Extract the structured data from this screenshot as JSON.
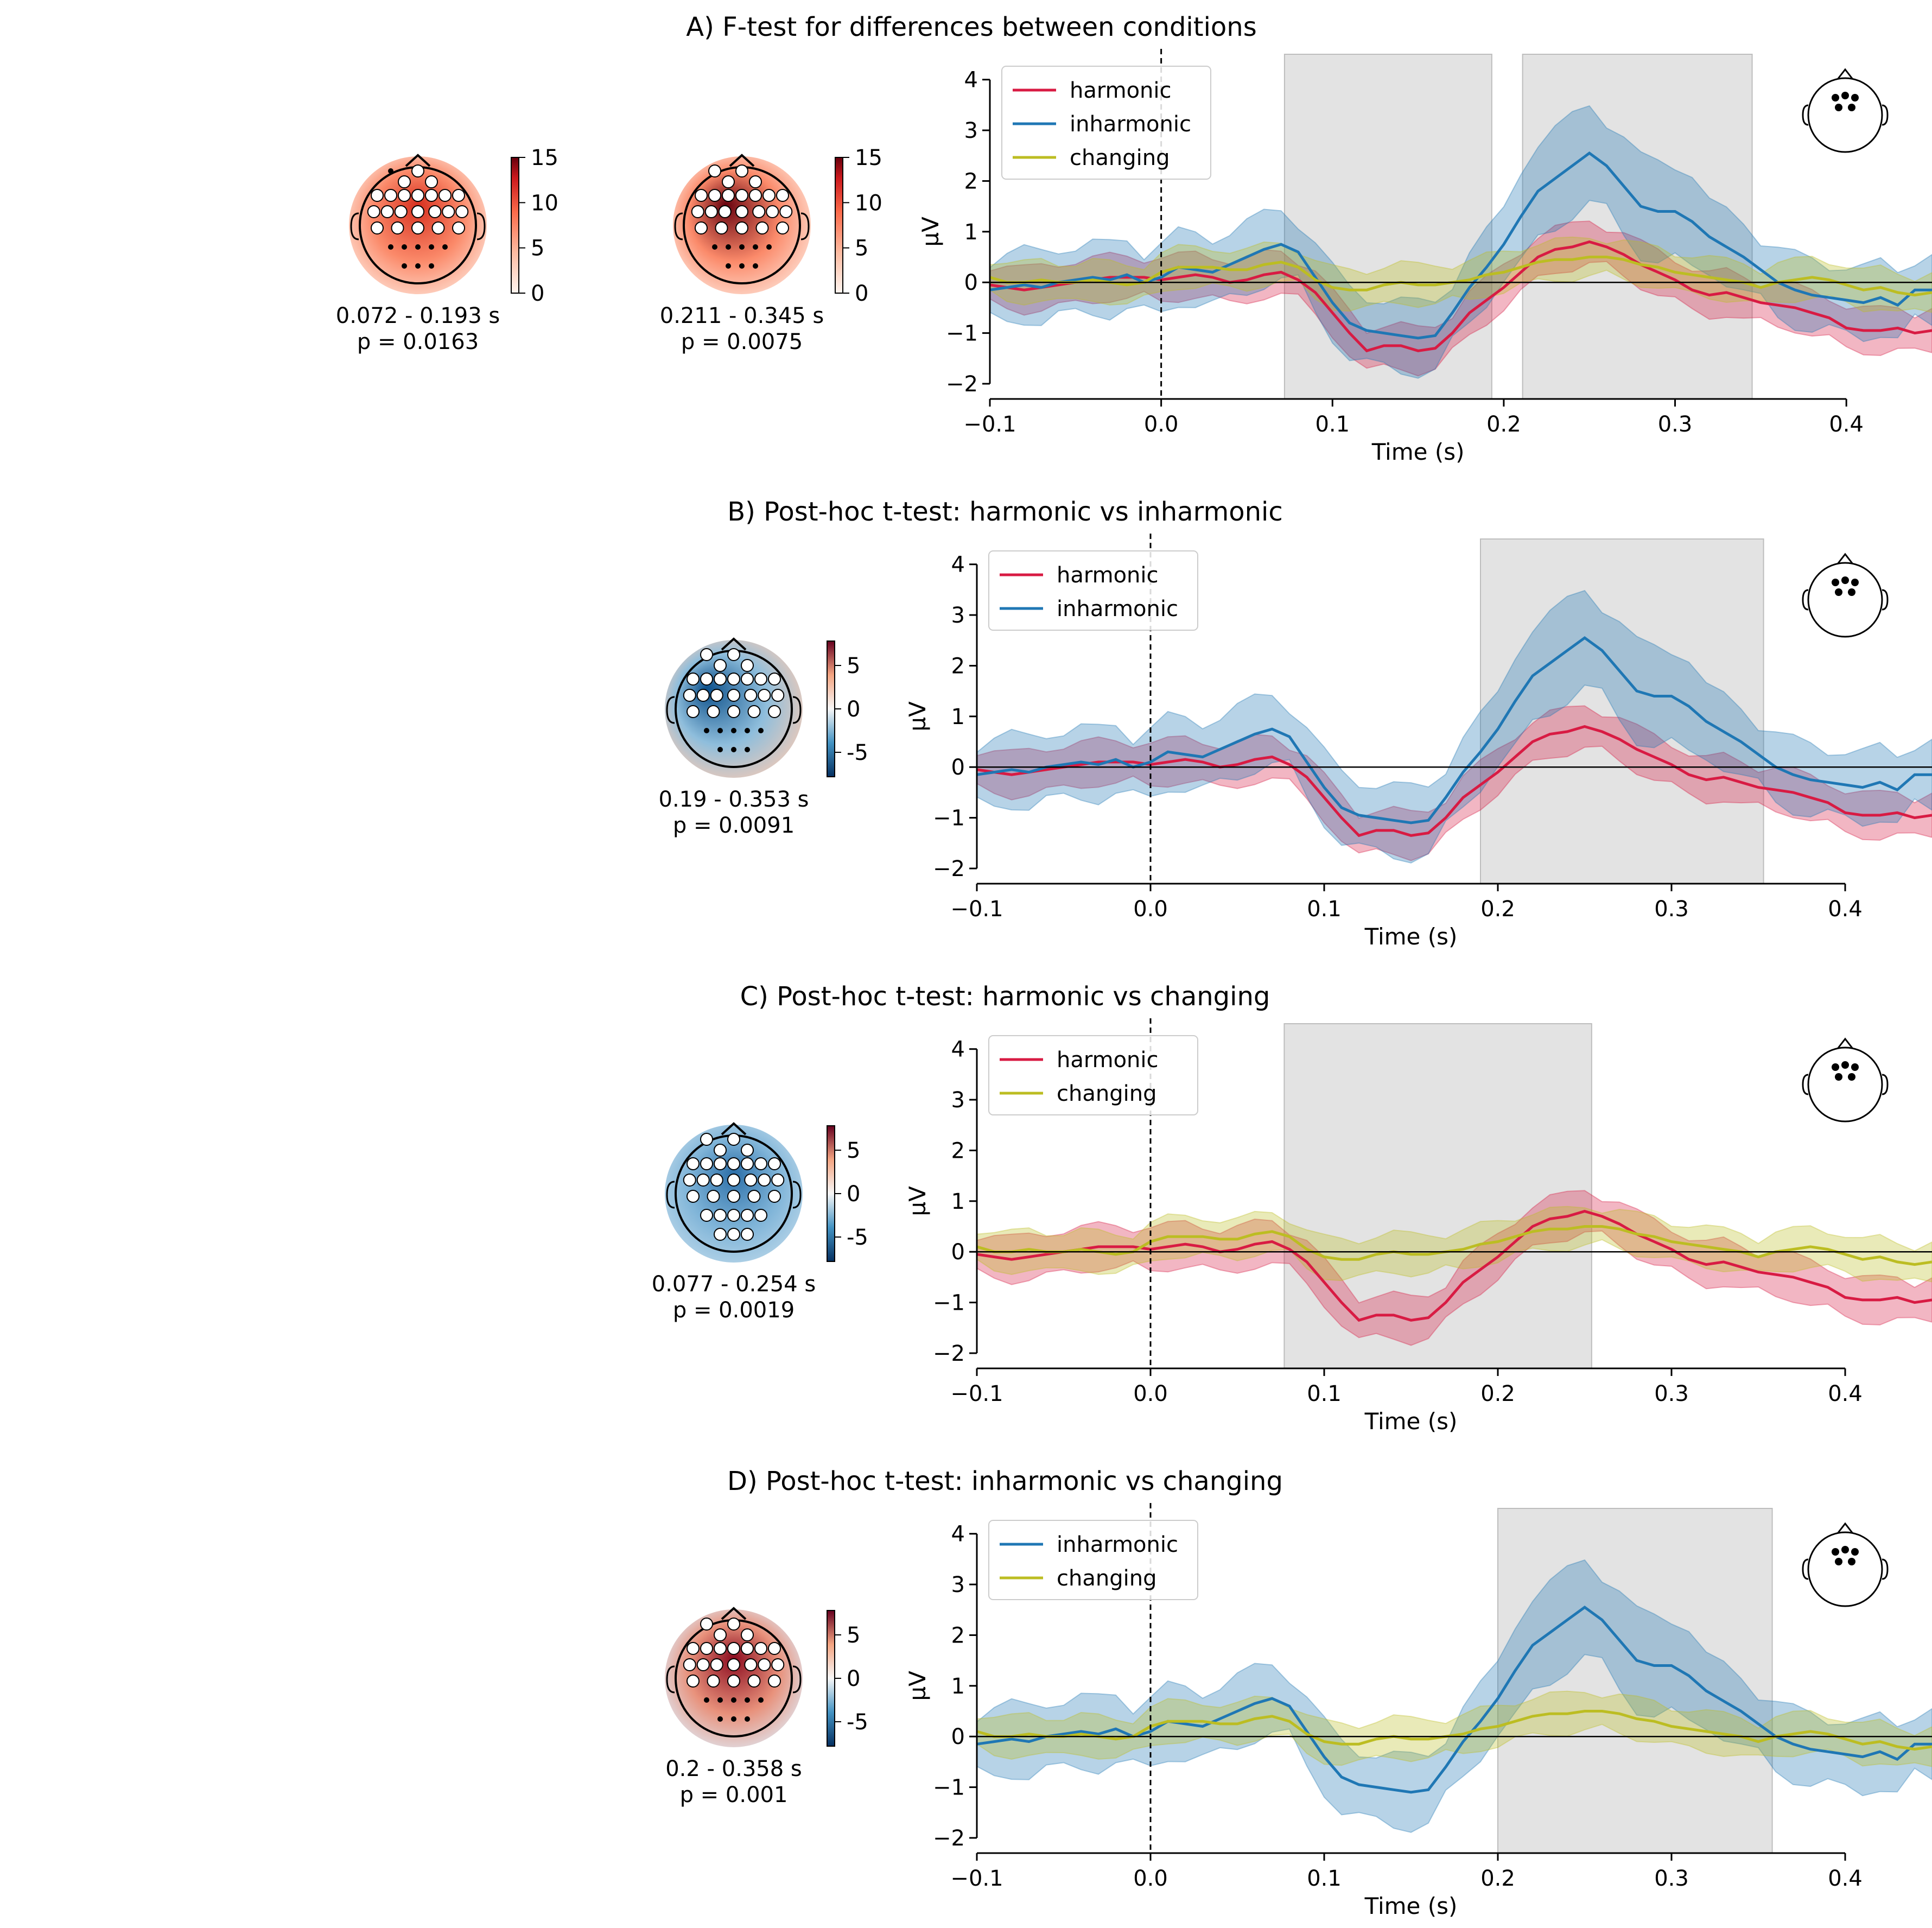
{
  "colors": {
    "harmonic": "#d81b43",
    "inharmonic": "#1f77b4",
    "changing": "#bcbd22",
    "cluster_shade": "#d9d9d9"
  },
  "chart_data": [
    {
      "type": "line",
      "title": "A) F-test for differences between conditions",
      "xlabel": "Time (s)",
      "ylabel": "µV",
      "xlim": [
        -0.1,
        0.45
      ],
      "ylim": [
        -2.3,
        4.5
      ],
      "xticks": [
        "−0.1",
        "0.0",
        "0.1",
        "0.2",
        "0.3",
        "0.4"
      ],
      "yticks": [
        "−2",
        "−1",
        "0",
        "1",
        "2",
        "3",
        "4"
      ],
      "legend_position": "upper-left",
      "clusters": [
        [
          0.072,
          0.193
        ],
        [
          0.211,
          0.345
        ]
      ],
      "series": [
        {
          "name": "harmonic",
          "color_key": "harmonic"
        },
        {
          "name": "inharmonic",
          "color_key": "inharmonic"
        },
        {
          "name": "changing",
          "color_key": "changing"
        }
      ],
      "topomaps": [
        {
          "time_window": "0.072 - 0.193 s",
          "p_value": "p = 0.0163",
          "cmap": "reds",
          "pattern": "frontal-wide",
          "colorbar_ticks": [
            "15",
            "10",
            "5",
            "0"
          ]
        },
        {
          "time_window": "0.211 - 0.345 s",
          "p_value": "p = 0.0075",
          "cmap": "reds",
          "pattern": "frontal-left",
          "colorbar_ticks": [
            "15",
            "10",
            "5",
            "0"
          ]
        }
      ]
    },
    {
      "type": "line",
      "title": "B) Post-hoc t-test: harmonic vs inharmonic",
      "xlabel": "Time (s)",
      "ylabel": "µV",
      "xlim": [
        -0.1,
        0.45
      ],
      "ylim": [
        -2.3,
        4.5
      ],
      "xticks": [
        "−0.1",
        "0.0",
        "0.1",
        "0.2",
        "0.3",
        "0.4"
      ],
      "yticks": [
        "−2",
        "−1",
        "0",
        "1",
        "2",
        "3",
        "4"
      ],
      "legend_position": "upper-left",
      "clusters": [
        [
          0.19,
          0.353
        ]
      ],
      "series": [
        {
          "name": "harmonic",
          "color_key": "harmonic"
        },
        {
          "name": "inharmonic",
          "color_key": "inharmonic"
        }
      ],
      "topomaps": [
        {
          "time_window": "0.19 - 0.353 s",
          "p_value": "p = 0.0091",
          "cmap": "rdbu",
          "pattern": "blue-left",
          "colorbar_ticks": [
            "5",
            "0",
            "-5"
          ]
        }
      ]
    },
    {
      "type": "line",
      "title": "C) Post-hoc t-test: harmonic vs changing",
      "xlabel": "Time (s)",
      "ylabel": "µV",
      "xlim": [
        -0.1,
        0.45
      ],
      "ylim": [
        -2.3,
        4.5
      ],
      "xticks": [
        "−0.1",
        "0.0",
        "0.1",
        "0.2",
        "0.3",
        "0.4"
      ],
      "yticks": [
        "−2",
        "−1",
        "0",
        "1",
        "2",
        "3",
        "4"
      ],
      "legend_position": "upper-left",
      "clusters": [
        [
          0.077,
          0.254
        ]
      ],
      "series": [
        {
          "name": "harmonic",
          "color_key": "harmonic"
        },
        {
          "name": "changing",
          "color_key": "changing"
        }
      ],
      "topomaps": [
        {
          "time_window": "0.077 - 0.254 s",
          "p_value": "p = 0.0019",
          "cmap": "rdbu",
          "pattern": "blue-all",
          "colorbar_ticks": [
            "5",
            "0",
            "-5"
          ]
        }
      ]
    },
    {
      "type": "line",
      "title": "D) Post-hoc t-test: inharmonic vs changing",
      "xlabel": "Time (s)",
      "ylabel": "µV",
      "xlim": [
        -0.1,
        0.45
      ],
      "ylim": [
        -2.3,
        4.5
      ],
      "xticks": [
        "−0.1",
        "0.0",
        "0.1",
        "0.2",
        "0.3",
        "0.4"
      ],
      "yticks": [
        "−2",
        "−1",
        "0",
        "1",
        "2",
        "3",
        "4"
      ],
      "legend_position": "upper-left",
      "clusters": [
        [
          0.2,
          0.358
        ]
      ],
      "series": [
        {
          "name": "inharmonic",
          "color_key": "inharmonic"
        },
        {
          "name": "changing",
          "color_key": "changing"
        }
      ],
      "topomaps": [
        {
          "time_window": "0.2 - 0.358 s",
          "p_value": "p = 0.001",
          "cmap": "rdbu",
          "pattern": "red-front",
          "colorbar_ticks": [
            "5",
            "0",
            "-5"
          ]
        }
      ]
    }
  ],
  "waveforms": {
    "harmonic": {
      "x": [
        -0.1,
        -0.09,
        -0.08,
        -0.07,
        -0.06,
        -0.05,
        -0.04,
        -0.03,
        -0.02,
        -0.01,
        0.0,
        0.01,
        0.02,
        0.03,
        0.04,
        0.05,
        0.06,
        0.07,
        0.08,
        0.09,
        0.1,
        0.11,
        0.12,
        0.13,
        0.14,
        0.15,
        0.16,
        0.17,
        0.18,
        0.19,
        0.2,
        0.21,
        0.22,
        0.23,
        0.24,
        0.25,
        0.26,
        0.27,
        0.28,
        0.29,
        0.3,
        0.31,
        0.32,
        0.33,
        0.34,
        0.35,
        0.36,
        0.37,
        0.38,
        0.39,
        0.4,
        0.41,
        0.42,
        0.43,
        0.44,
        0.45
      ],
      "y": [
        -0.05,
        -0.1,
        -0.15,
        -0.1,
        -0.05,
        0.0,
        0.05,
        0.1,
        0.1,
        0.1,
        0.05,
        0.1,
        0.15,
        0.1,
        0.0,
        0.05,
        0.15,
        0.2,
        0.05,
        -0.2,
        -0.6,
        -1.0,
        -1.35,
        -1.25,
        -1.25,
        -1.35,
        -1.3,
        -1.0,
        -0.6,
        -0.35,
        -0.1,
        0.2,
        0.5,
        0.65,
        0.7,
        0.8,
        0.7,
        0.55,
        0.35,
        0.2,
        0.05,
        -0.15,
        -0.25,
        -0.2,
        -0.3,
        -0.4,
        -0.45,
        -0.5,
        -0.6,
        -0.7,
        -0.9,
        -0.95,
        -0.95,
        -0.9,
        -1.0,
        -0.95
      ],
      "err": 0.5
    },
    "inharmonic": {
      "x": [
        -0.1,
        -0.09,
        -0.08,
        -0.07,
        -0.06,
        -0.05,
        -0.04,
        -0.03,
        -0.02,
        -0.01,
        0.0,
        0.01,
        0.02,
        0.03,
        0.04,
        0.05,
        0.06,
        0.07,
        0.08,
        0.09,
        0.1,
        0.11,
        0.12,
        0.13,
        0.14,
        0.15,
        0.16,
        0.17,
        0.18,
        0.19,
        0.2,
        0.21,
        0.22,
        0.23,
        0.24,
        0.25,
        0.26,
        0.27,
        0.28,
        0.29,
        0.3,
        0.31,
        0.32,
        0.33,
        0.34,
        0.35,
        0.36,
        0.37,
        0.38,
        0.39,
        0.4,
        0.41,
        0.42,
        0.43,
        0.44,
        0.45
      ],
      "y": [
        -0.15,
        -0.1,
        -0.05,
        -0.1,
        0.0,
        0.05,
        0.1,
        0.05,
        0.15,
        0.0,
        0.1,
        0.3,
        0.25,
        0.2,
        0.35,
        0.5,
        0.65,
        0.75,
        0.6,
        0.1,
        -0.4,
        -0.8,
        -0.95,
        -1.0,
        -1.05,
        -1.1,
        -1.05,
        -0.6,
        -0.1,
        0.3,
        0.75,
        1.3,
        1.8,
        2.05,
        2.3,
        2.55,
        2.3,
        1.9,
        1.5,
        1.4,
        1.4,
        1.2,
        0.9,
        0.7,
        0.5,
        0.25,
        0.0,
        -0.15,
        -0.25,
        -0.3,
        -0.35,
        -0.4,
        -0.3,
        -0.45,
        -0.15,
        -0.15
      ],
      "err": 0.8
    },
    "changing": {
      "x": [
        -0.1,
        -0.09,
        -0.08,
        -0.07,
        -0.06,
        -0.05,
        -0.04,
        -0.03,
        -0.02,
        -0.01,
        0.0,
        0.01,
        0.02,
        0.03,
        0.04,
        0.05,
        0.06,
        0.07,
        0.08,
        0.09,
        0.1,
        0.11,
        0.12,
        0.13,
        0.14,
        0.15,
        0.16,
        0.17,
        0.18,
        0.19,
        0.2,
        0.21,
        0.22,
        0.23,
        0.24,
        0.25,
        0.26,
        0.27,
        0.28,
        0.29,
        0.3,
        0.31,
        0.32,
        0.33,
        0.34,
        0.35,
        0.36,
        0.37,
        0.38,
        0.39,
        0.4,
        0.41,
        0.42,
        0.43,
        0.44,
        0.45
      ],
      "y": [
        0.1,
        0.0,
        0.0,
        0.05,
        0.0,
        0.0,
        0.05,
        0.0,
        -0.05,
        0.0,
        0.2,
        0.3,
        0.3,
        0.3,
        0.25,
        0.25,
        0.35,
        0.4,
        0.3,
        0.05,
        -0.1,
        -0.15,
        -0.15,
        -0.05,
        0.0,
        -0.05,
        -0.05,
        0.0,
        0.05,
        0.15,
        0.2,
        0.3,
        0.4,
        0.45,
        0.45,
        0.5,
        0.5,
        0.45,
        0.35,
        0.3,
        0.2,
        0.15,
        0.1,
        0.05,
        0.0,
        -0.1,
        0.0,
        0.05,
        0.1,
        0.05,
        -0.05,
        -0.15,
        -0.1,
        -0.2,
        -0.25,
        -0.2
      ],
      "err": 0.45
    }
  }
}
